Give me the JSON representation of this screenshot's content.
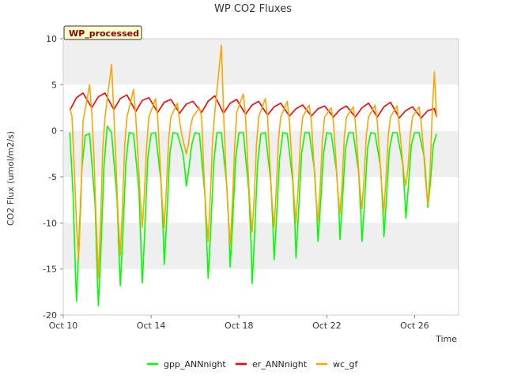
{
  "chart_data": {
    "type": "line",
    "title": "WP CO2 Fluxes",
    "xlabel": "Time",
    "ylabel": "CO2 Flux (umol/m2/s)",
    "badge": "WP_processed",
    "xlim": [
      0,
      18
    ],
    "ylim": [
      -20,
      10
    ],
    "x_ticks": [
      0,
      4,
      8,
      12,
      16
    ],
    "x_tick_labels": [
      "Oct 10",
      "Oct 14",
      "Oct 18",
      "Oct 22",
      "Oct 26"
    ],
    "y_ticks": [
      -20,
      -15,
      -10,
      -5,
      0,
      5,
      10
    ],
    "y_tick_labels": [
      "-20",
      "-15",
      "-10",
      "-5",
      "0",
      "5",
      "10"
    ],
    "band_color": "#efefef",
    "x_units": "days since Oct 10",
    "daily_midday_minima": {
      "days": [
        0.6,
        1.6,
        2.6,
        3.6,
        4.6,
        5.6,
        6.6,
        7.6,
        8.6,
        9.6,
        10.6,
        11.6,
        12.6,
        13.6,
        14.6,
        15.6,
        16.6
      ],
      "gpp_ANNnight": [
        -18.5,
        -19.0,
        -16.8,
        -16.5,
        -14.5,
        -6.0,
        -16.0,
        -14.8,
        -16.6,
        -14.0,
        -13.8,
        -12.0,
        -11.8,
        -12.0,
        -11.5,
        -9.5,
        -8.3
      ],
      "wc_gf": [
        -14.0,
        -16.0,
        -13.5,
        -10.5,
        -10.5,
        -2.5,
        -12.0,
        -12.5,
        -11.0,
        -10.5,
        -10.0,
        -9.8,
        -9.0,
        -8.5,
        -8.8,
        -6.0,
        -8.0
      ],
      "wc_gf_spikes": [
        5.0,
        7.2,
        4.5,
        3.5,
        3.0,
        2.5,
        9.3,
        4.0,
        3.5,
        3.2,
        2.8,
        2.5,
        2.6,
        2.8,
        2.7,
        2.6,
        6.4
      ]
    },
    "series": [
      {
        "name": "gpp_ANNnight",
        "color": "#00ff00",
        "x": [
          0.3,
          0.45,
          0.55,
          0.6,
          0.7,
          0.85,
          1.0,
          1.2,
          1.45,
          1.55,
          1.6,
          1.7,
          1.85,
          2.0,
          2.2,
          2.45,
          2.55,
          2.6,
          2.7,
          2.85,
          3.0,
          3.2,
          3.45,
          3.55,
          3.6,
          3.7,
          3.85,
          4.0,
          4.2,
          4.45,
          4.55,
          4.6,
          4.7,
          4.85,
          5.0,
          5.2,
          5.45,
          5.55,
          5.6,
          5.7,
          5.85,
          6.0,
          6.2,
          6.45,
          6.55,
          6.6,
          6.7,
          6.85,
          7.0,
          7.2,
          7.45,
          7.55,
          7.6,
          7.7,
          7.85,
          8.0,
          8.2,
          8.45,
          8.55,
          8.6,
          8.7,
          8.85,
          9.0,
          9.2,
          9.45,
          9.55,
          9.6,
          9.7,
          9.85,
          10.0,
          10.2,
          10.45,
          10.55,
          10.6,
          10.7,
          10.85,
          11.0,
          11.2,
          11.45,
          11.55,
          11.6,
          11.7,
          11.85,
          12.0,
          12.2,
          12.45,
          12.55,
          12.6,
          12.7,
          12.85,
          13.0,
          13.2,
          13.45,
          13.55,
          13.6,
          13.7,
          13.85,
          14.0,
          14.2,
          14.45,
          14.55,
          14.6,
          14.7,
          14.85,
          15.0,
          15.2,
          15.45,
          15.55,
          15.6,
          15.7,
          15.85,
          16.0,
          16.2,
          16.45,
          16.55,
          16.6,
          16.7,
          16.85,
          17.0
        ],
        "y": [
          -0.2,
          -7.0,
          -15.0,
          -18.5,
          -13.0,
          -4.0,
          -0.5,
          -0.3,
          -8.0,
          -16.0,
          -19.0,
          -14.0,
          -4.0,
          0.5,
          -0.2,
          -7.5,
          -14.0,
          -16.8,
          -12.0,
          -3.5,
          -0.2,
          -0.3,
          -6.5,
          -13.5,
          -16.5,
          -11.5,
          -3.0,
          -0.3,
          -0.2,
          -5.5,
          -11.0,
          -14.5,
          -10.0,
          -2.5,
          -0.2,
          -0.3,
          -2.5,
          -4.5,
          -6.0,
          -4.5,
          -1.5,
          -0.2,
          -0.3,
          -7.0,
          -13.0,
          -16.0,
          -11.5,
          -3.5,
          -0.2,
          -0.2,
          -6.0,
          -11.0,
          -14.8,
          -10.5,
          -3.0,
          -0.2,
          -0.2,
          -6.5,
          -12.0,
          -16.6,
          -12.0,
          -3.5,
          -0.3,
          -0.2,
          -5.5,
          -10.5,
          -14.0,
          -10.0,
          -3.0,
          -0.2,
          -0.3,
          -5.5,
          -10.5,
          -13.8,
          -9.5,
          -2.5,
          -0.2,
          -0.2,
          -4.5,
          -9.0,
          -12.0,
          -8.5,
          -2.5,
          -0.2,
          -0.3,
          -4.5,
          -8.5,
          -11.8,
          -8.0,
          -2.0,
          -0.2,
          -0.2,
          -4.5,
          -9.0,
          -12.0,
          -8.5,
          -2.0,
          -0.2,
          -0.3,
          -4.0,
          -8.5,
          -11.5,
          -8.0,
          -2.0,
          -0.2,
          -0.2,
          -3.5,
          -7.0,
          -9.5,
          -6.5,
          -1.5,
          -0.2,
          -0.2,
          -3.0,
          -6.5,
          -8.3,
          -6.0,
          -1.5,
          -0.3
        ]
      },
      {
        "name": "er_ANNnight",
        "color": "#ff0000",
        "x": [
          0.3,
          0.6,
          0.9,
          1.3,
          1.6,
          1.9,
          2.3,
          2.6,
          2.9,
          3.3,
          3.6,
          3.9,
          4.3,
          4.6,
          4.9,
          5.3,
          5.6,
          5.9,
          6.3,
          6.6,
          6.9,
          7.3,
          7.6,
          7.9,
          8.3,
          8.6,
          8.9,
          9.3,
          9.6,
          9.9,
          10.3,
          10.6,
          10.9,
          11.3,
          11.6,
          11.9,
          12.3,
          12.6,
          12.9,
          13.3,
          13.6,
          13.9,
          14.3,
          14.6,
          14.9,
          15.3,
          15.6,
          15.9,
          16.3,
          16.6,
          16.9,
          17.0
        ],
        "y": [
          2.2,
          3.6,
          4.1,
          2.5,
          3.7,
          4.1,
          2.3,
          3.5,
          3.9,
          2.1,
          3.3,
          3.6,
          2.0,
          3.1,
          3.4,
          1.9,
          2.9,
          3.2,
          2.0,
          3.2,
          3.8,
          1.9,
          3.0,
          3.4,
          1.8,
          2.8,
          3.2,
          1.7,
          2.6,
          3.0,
          1.6,
          2.4,
          2.8,
          1.6,
          2.4,
          2.7,
          1.5,
          2.3,
          2.7,
          1.5,
          2.5,
          3.0,
          1.5,
          2.6,
          3.1,
          1.4,
          2.2,
          2.6,
          1.4,
          2.2,
          2.4,
          1.5
        ]
      },
      {
        "name": "wc_gf",
        "color": "#ffa500",
        "x": [
          0.3,
          0.4,
          0.5,
          0.6,
          0.7,
          0.8,
          0.9,
          1.2,
          1.3,
          1.4,
          1.5,
          1.6,
          1.7,
          1.8,
          1.9,
          2.2,
          2.3,
          2.4,
          2.5,
          2.6,
          2.7,
          2.8,
          2.9,
          3.2,
          3.3,
          3.4,
          3.5,
          3.6,
          3.7,
          3.8,
          3.9,
          4.2,
          4.3,
          4.4,
          4.5,
          4.6,
          4.7,
          4.8,
          4.9,
          5.2,
          5.3,
          5.4,
          5.5,
          5.6,
          5.7,
          5.8,
          5.9,
          6.2,
          6.3,
          6.4,
          6.5,
          6.6,
          6.7,
          6.8,
          6.9,
          7.2,
          7.3,
          7.4,
          7.5,
          7.6,
          7.7,
          7.8,
          7.9,
          8.2,
          8.3,
          8.4,
          8.5,
          8.6,
          8.7,
          8.8,
          8.9,
          9.2,
          9.3,
          9.4,
          9.5,
          9.6,
          9.7,
          9.8,
          9.9,
          10.2,
          10.3,
          10.4,
          10.5,
          10.6,
          10.7,
          10.8,
          10.9,
          11.2,
          11.3,
          11.4,
          11.5,
          11.6,
          11.7,
          11.8,
          11.9,
          12.2,
          12.3,
          12.4,
          12.5,
          12.6,
          12.7,
          12.8,
          12.9,
          13.2,
          13.3,
          13.4,
          13.5,
          13.6,
          13.7,
          13.8,
          13.9,
          14.2,
          14.3,
          14.4,
          14.5,
          14.6,
          14.7,
          14.8,
          14.9,
          15.2,
          15.3,
          15.4,
          15.5,
          15.6,
          15.7,
          15.8,
          15.9,
          16.2,
          16.3,
          16.4,
          16.5,
          16.6,
          16.7,
          16.8,
          16.9,
          17.0
        ],
        "y": [
          2.5,
          1.5,
          -4.0,
          -10.0,
          -14.0,
          -8.0,
          1.0,
          5.0,
          2.0,
          -3.0,
          -10.0,
          -16.0,
          -10.0,
          -2.0,
          1.5,
          7.2,
          2.0,
          -3.5,
          -9.5,
          -13.5,
          -8.0,
          -1.5,
          1.5,
          4.5,
          1.5,
          -2.5,
          -7.0,
          -10.5,
          -6.5,
          -1.5,
          1.5,
          3.5,
          1.5,
          -3.0,
          -7.5,
          -10.5,
          -6.0,
          -1.0,
          1.5,
          3.0,
          1.0,
          -0.5,
          -1.5,
          -2.5,
          -1.5,
          0.5,
          1.5,
          2.5,
          1.5,
          -4.5,
          -9.0,
          -12.0,
          -7.0,
          -1.0,
          2.0,
          9.3,
          2.0,
          -4.0,
          -8.5,
          -12.5,
          -8.0,
          -2.0,
          2.0,
          4.0,
          1.5,
          -3.5,
          -8.0,
          -11.0,
          -7.0,
          -1.5,
          1.5,
          3.5,
          1.5,
          -3.0,
          -7.5,
          -10.5,
          -6.5,
          -1.0,
          1.5,
          3.2,
          1.0,
          -3.0,
          -7.0,
          -10.0,
          -6.0,
          -1.0,
          1.5,
          2.8,
          1.0,
          -3.0,
          -7.0,
          -9.8,
          -6.0,
          -1.0,
          1.5,
          2.5,
          1.0,
          -2.5,
          -6.5,
          -9.0,
          -5.5,
          -0.5,
          1.5,
          2.6,
          1.0,
          -2.5,
          -6.0,
          -8.5,
          -5.0,
          -0.5,
          1.5,
          2.8,
          1.0,
          -2.5,
          -6.0,
          -8.8,
          -5.0,
          -0.5,
          1.5,
          2.7,
          0.5,
          -2.0,
          -4.5,
          -6.0,
          -4.0,
          -0.5,
          1.5,
          2.6,
          0.8,
          -2.0,
          -5.5,
          -8.0,
          -4.5,
          2.0,
          6.4,
          1.5
        ]
      }
    ]
  }
}
